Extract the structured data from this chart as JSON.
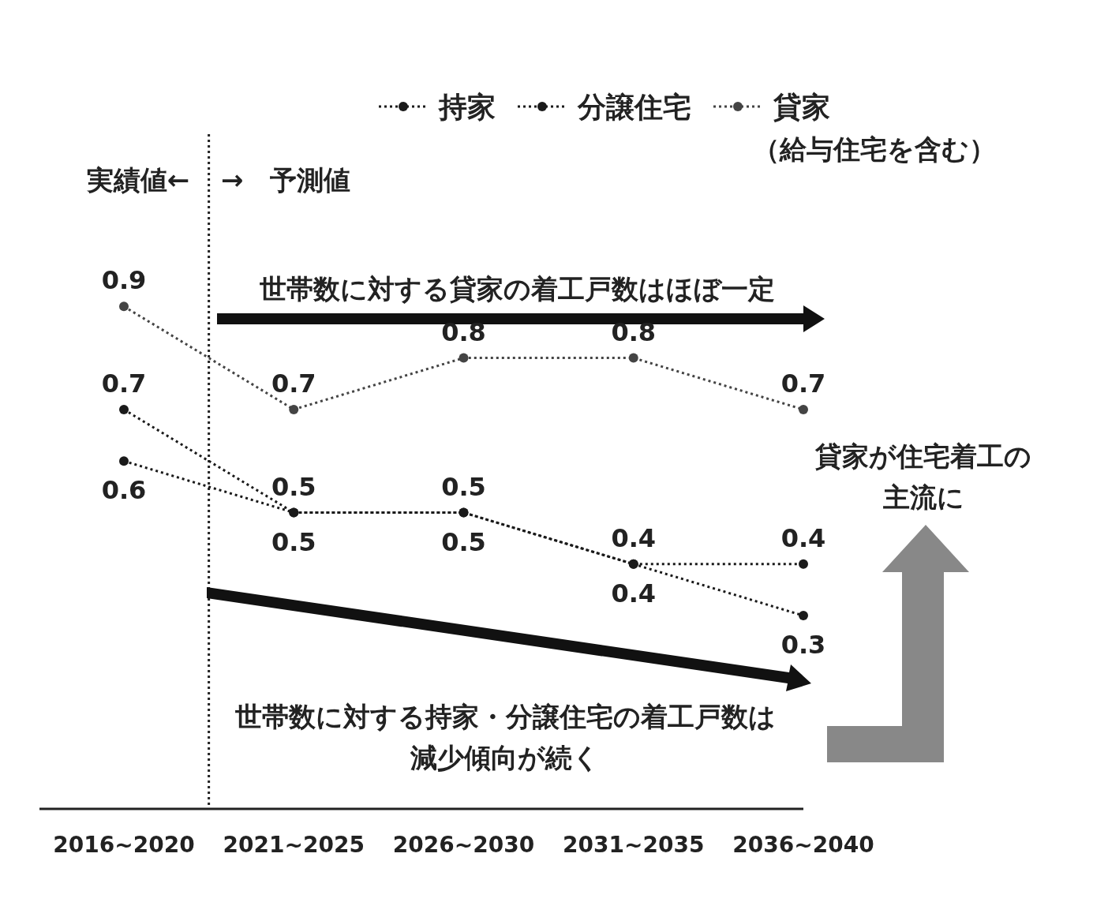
{
  "chart_data": {
    "type": "line",
    "categories": [
      "2016~2020",
      "2021~2025",
      "2026~2030",
      "2031~2035",
      "2036~2040"
    ],
    "series": [
      {
        "name": "持家",
        "color": "#1a1a1a",
        "values": [
          0.7,
          0.5,
          0.5,
          0.4,
          0.4
        ]
      },
      {
        "name": "分譲住宅",
        "color": "#1a1a1a",
        "values": [
          0.6,
          0.5,
          0.5,
          0.4,
          0.3
        ]
      },
      {
        "name": "貸家（給与住宅を含む）",
        "color": "#444444",
        "values": [
          0.9,
          0.7,
          0.8,
          0.8,
          0.7
        ]
      }
    ],
    "marker": "circle",
    "line_style": "dotted",
    "legend": "top right",
    "data_labels": true,
    "annotations": [
      "実績値←",
      "→　予測値",
      "世帯数に対する貸家の着工戸数はほぼ一定",
      "世帯数に対する持家・分譲住宅の着工戸数は減少傾向が続く",
      "貸家が住宅着工の主流に"
    ]
  }
}
